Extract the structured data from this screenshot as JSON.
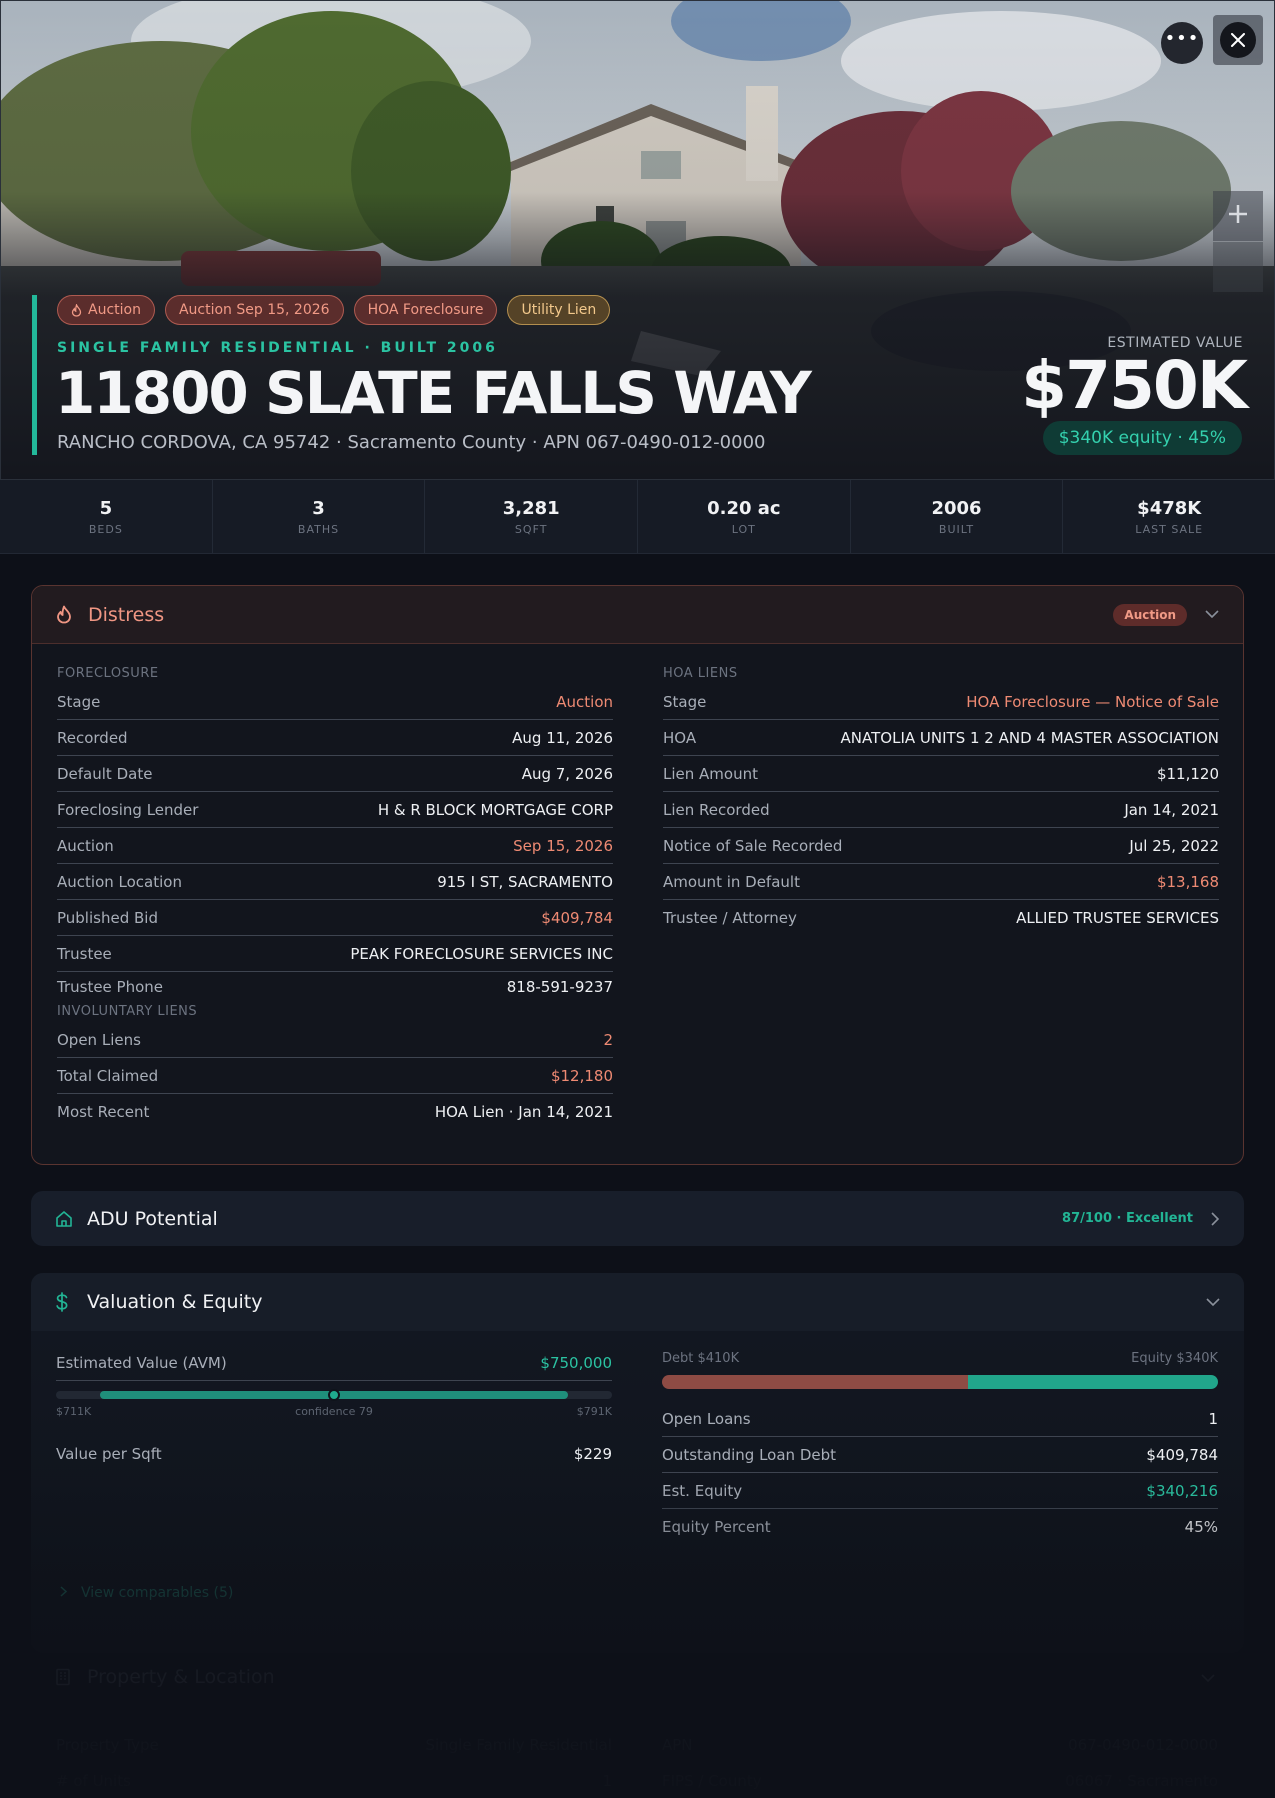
{
  "hero": {
    "chips": [
      {
        "label": "Auction",
        "style": "red",
        "icon": "flame-icon"
      },
      {
        "label": "Auction Sep 15, 2026",
        "style": "red"
      },
      {
        "label": "HOA Foreclosure",
        "style": "red"
      },
      {
        "label": "Utility Lien",
        "style": "amber"
      }
    ],
    "subtitle": "SINGLE FAMILY RESIDENTIAL · BUILT 2006",
    "address": "11800 SLATE FALLS WAY",
    "location_line": "RANCHO CORDOVA, CA 95742 · Sacramento County · APN 067-0490-012-0000",
    "estimated_value_label": "ESTIMATED VALUE",
    "estimated_value": "$750K",
    "equity_pill": "$340K equity · 45%",
    "more_icon": "ellipsis-icon",
    "close_icon": "close-icon",
    "zoom_icon": "plus-icon"
  },
  "stats": [
    {
      "value": "5",
      "label": "BEDS"
    },
    {
      "value": "3",
      "label": "BATHS"
    },
    {
      "value": "3,281",
      "label": "SQFT"
    },
    {
      "value": "0.20 ac",
      "label": "LOT"
    },
    {
      "value": "2006",
      "label": "BUILT"
    },
    {
      "value": "$478K",
      "label": "LAST SALE"
    }
  ],
  "distress": {
    "title": "Distress",
    "icon": "flame-icon",
    "badge": "Auction",
    "foreclosure": {
      "label": "FORECLOSURE",
      "rows": [
        {
          "k": "Stage",
          "v": "Auction",
          "tone": "red"
        },
        {
          "k": "Recorded",
          "v": "Aug 11, 2026"
        },
        {
          "k": "Default Date",
          "v": "Aug 7, 2026"
        },
        {
          "k": "Foreclosing Lender",
          "v": "H & R BLOCK MORTGAGE CORP"
        },
        {
          "k": "Auction",
          "v": "Sep 15, 2026",
          "tone": "red"
        },
        {
          "k": "Auction Location",
          "v": "915 I ST, SACRAMENTO"
        },
        {
          "k": "Published Bid",
          "v": "$409,784",
          "tone": "red"
        },
        {
          "k": "Trustee",
          "v": "PEAK FORECLOSURE SERVICES INC"
        },
        {
          "k": "Trustee Phone",
          "v": "818-591-9237"
        }
      ]
    },
    "involuntary": {
      "label": "INVOLUNTARY LIENS",
      "rows": [
        {
          "k": "Open Liens",
          "v": "2",
          "tone": "red"
        },
        {
          "k": "Total Claimed",
          "v": "$12,180",
          "tone": "red"
        },
        {
          "k": "Most Recent",
          "v": "HOA Lien · Jan 14, 2021"
        }
      ]
    },
    "hoa": {
      "label": "HOA LIENS",
      "rows": [
        {
          "k": "Stage",
          "v": "HOA Foreclosure — Notice of Sale",
          "tone": "red"
        },
        {
          "k": "HOA",
          "v": "ANATOLIA UNITS 1 2 AND 4 MASTER ASSOCIATION"
        },
        {
          "k": "Lien Amount",
          "v": "$11,120"
        },
        {
          "k": "Lien Recorded",
          "v": "Jan 14, 2021"
        },
        {
          "k": "Notice of Sale Recorded",
          "v": "Jul 25, 2022"
        },
        {
          "k": "Amount in Default",
          "v": "$13,168",
          "tone": "red"
        },
        {
          "k": "Trustee / Attorney",
          "v": "ALLIED TRUSTEE SERVICES"
        }
      ]
    }
  },
  "adu": {
    "title": "ADU Potential",
    "icon": "home-icon",
    "score": "87/100 · Excellent"
  },
  "valuation": {
    "title": "Valuation & Equity",
    "icon": "dollar-icon",
    "avm_label": "Estimated Value (AVM)",
    "avm_value": "$750,000",
    "range_low": "$711K",
    "range_high": "$791K",
    "confidence": "confidence 79",
    "value_per_sqft_label": "Value per Sqft",
    "value_per_sqft": "$229",
    "debt_label": "Debt $410K",
    "equity_label": "Equity $340K",
    "debt_fraction": 0.55,
    "rows": [
      {
        "k": "Open Loans",
        "v": "1"
      },
      {
        "k": "Outstanding Loan Debt",
        "v": "$409,784"
      },
      {
        "k": "Est. Equity",
        "v": "$340,216",
        "tone": "green"
      },
      {
        "k": "Equity Percent",
        "v": "45%"
      }
    ],
    "comparables": "View comparables (5)"
  },
  "property": {
    "title": "Property & Location",
    "icon": "building-icon",
    "rows_left": [
      {
        "k": "Property Type",
        "v": "Single Family Residential"
      },
      {
        "k": "# of Units",
        "v": "1"
      }
    ],
    "rows_right": [
      {
        "k": "APN",
        "v": "067-0490-012-0000"
      },
      {
        "k": "FIPS / County",
        "v": "06067 · Sacramento"
      }
    ]
  },
  "colors": {
    "accent": "#23b89a",
    "distress_red": "#ee8a73",
    "amber": "#f3c98c",
    "background": "#0d1018"
  }
}
